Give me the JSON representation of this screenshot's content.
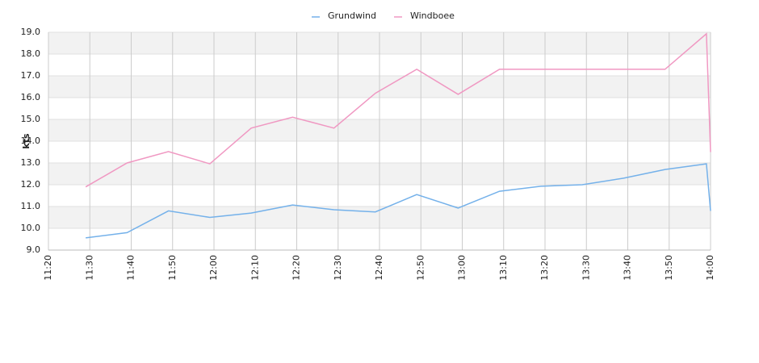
{
  "chart_data": {
    "type": "line",
    "y_label": "kts",
    "x": [
      "11:29",
      "11:39",
      "11:49",
      "11:59",
      "12:09",
      "12:19",
      "12:29",
      "12:39",
      "12:49",
      "12:59",
      "13:09",
      "13:19",
      "13:29",
      "13:39",
      "13:49",
      "13:59",
      "14:00"
    ],
    "series": [
      {
        "name": "Grundwind",
        "color": "#74b1ea",
        "values": [
          9.56,
          9.8,
          10.8,
          10.5,
          10.7,
          11.07,
          10.85,
          10.75,
          11.55,
          10.93,
          11.7,
          11.93,
          12.0,
          12.3,
          12.7,
          12.96,
          10.8
        ]
      },
      {
        "name": "Windboee",
        "color": "#f098c2",
        "values": [
          11.9,
          13.0,
          13.52,
          12.96,
          14.6,
          15.1,
          14.6,
          16.2,
          17.3,
          16.15,
          17.3,
          17.3,
          17.3,
          17.3,
          17.3,
          18.93,
          13.5
        ]
      }
    ],
    "xlim": [
      "11:20",
      "14:00"
    ],
    "xticks": [
      "11:20",
      "11:30",
      "11:40",
      "11:50",
      "12:00",
      "12:10",
      "12:20",
      "12:30",
      "12:40",
      "12:50",
      "13:00",
      "13:10",
      "13:20",
      "13:30",
      "13:40",
      "13:50",
      "14:00"
    ],
    "ylim": [
      9,
      19
    ],
    "yticks": [
      {
        "value": 9,
        "label": "9.0"
      },
      {
        "value": 10,
        "label": "10.0"
      },
      {
        "value": 11,
        "label": "11.0"
      },
      {
        "value": 12,
        "label": "12.0"
      },
      {
        "value": 13,
        "label": "13.0"
      },
      {
        "value": 14,
        "label": "14.0"
      },
      {
        "value": 15,
        "label": "15.0"
      },
      {
        "value": 16,
        "label": "16.0"
      },
      {
        "value": 17,
        "label": "17.0"
      },
      {
        "value": 18,
        "label": "18.0"
      },
      {
        "value": 19,
        "label": "19.0"
      }
    ],
    "grid": true,
    "legend": "top"
  }
}
